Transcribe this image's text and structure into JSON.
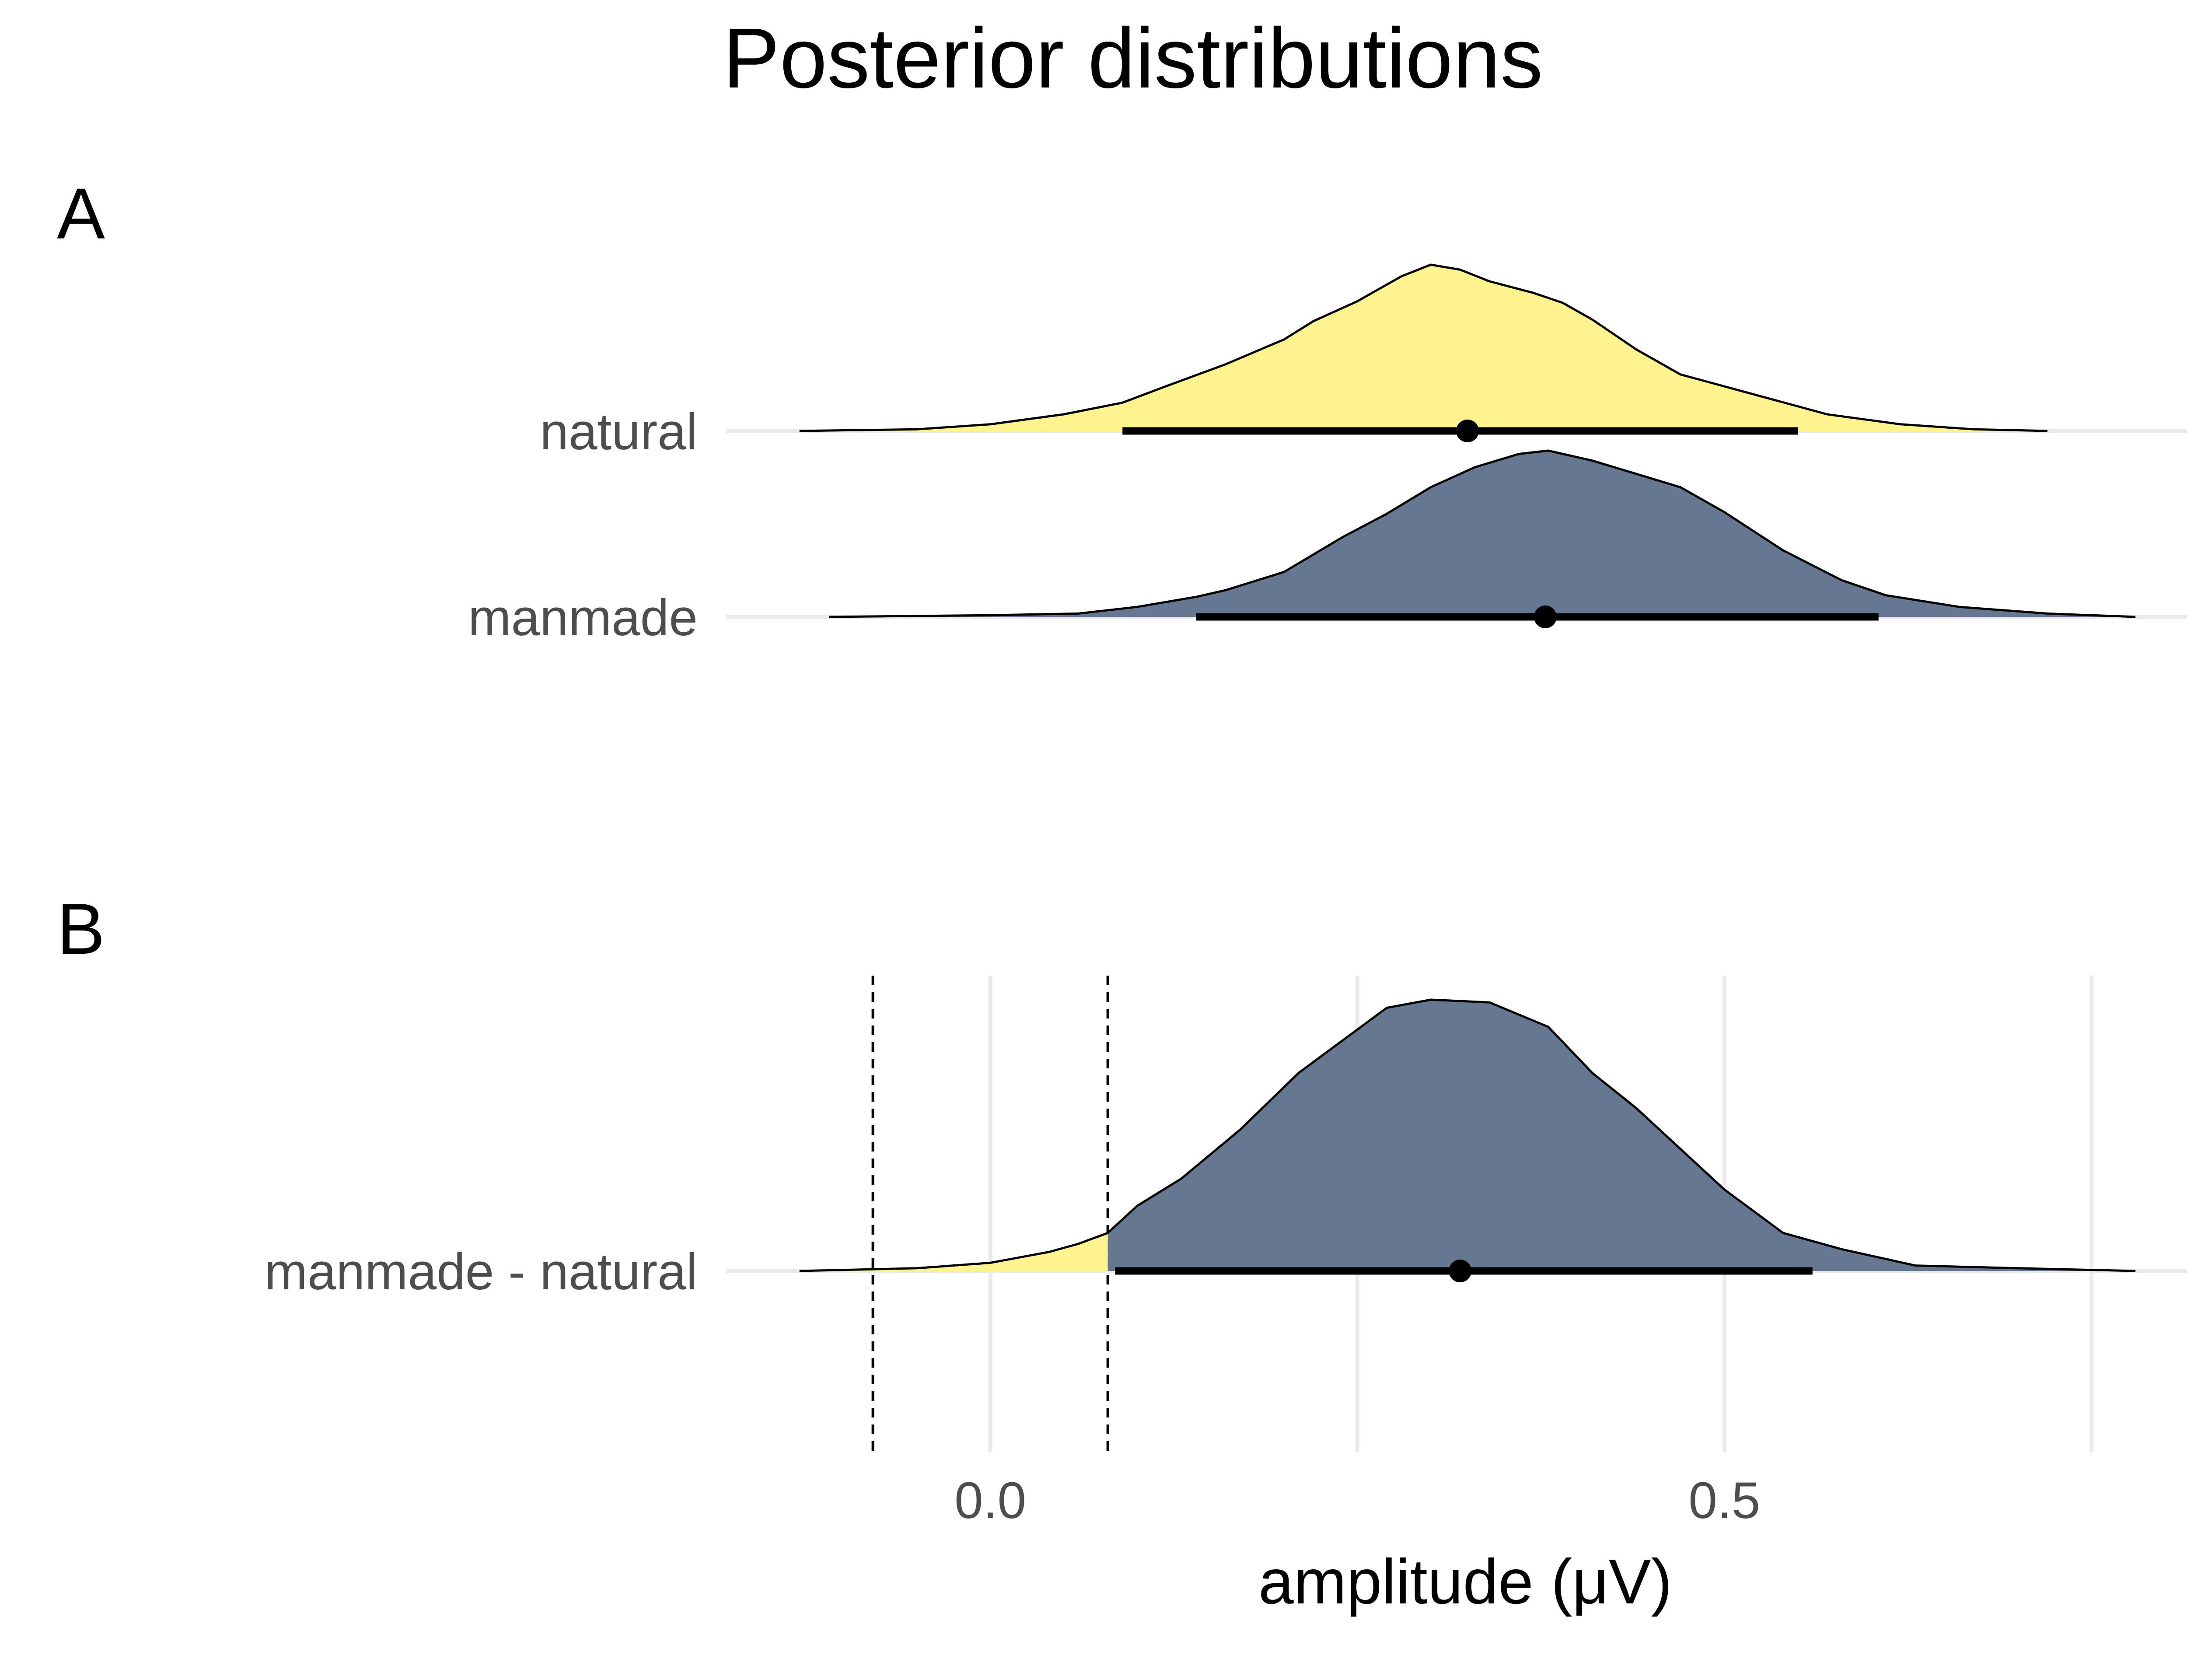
{
  "chart_data": {
    "type": "area",
    "title": "Posterior distributions",
    "xlabel": "amplitude (μV)",
    "xlim": [
      -0.18,
      0.83
    ],
    "x_ticks": [
      {
        "value": 0.0,
        "label": "0.0"
      },
      {
        "value": 0.5,
        "label": "0.5"
      }
    ],
    "x_minor_gridlines": [
      -0.25,
      0.25,
      0.75
    ],
    "colors": {
      "yellow": "#fff38f",
      "slate": "#667891",
      "grid": "#ebebeb"
    },
    "panels": [
      {
        "panel_label": "A",
        "show_vertical_grid": false,
        "reference_lines": [],
        "rows": [
          {
            "name": "natural",
            "density": {
              "x": [
                -0.13,
                -0.05,
                0.0,
                0.05,
                0.09,
                0.12,
                0.16,
                0.2,
                0.22,
                0.25,
                0.28,
                0.3,
                0.32,
                0.34,
                0.37,
                0.39,
                0.41,
                0.44,
                0.47,
                0.52,
                0.57,
                0.62,
                0.67,
                0.72
              ],
              "y": [
                0.0,
                0.01,
                0.04,
                0.1,
                0.17,
                0.27,
                0.4,
                0.55,
                0.66,
                0.78,
                0.93,
                1.0,
                0.97,
                0.9,
                0.83,
                0.77,
                0.67,
                0.49,
                0.34,
                0.22,
                0.1,
                0.04,
                0.01,
                0.0
              ]
            },
            "fill_split_x": 0.09,
            "left_tail_color": "#fff38f",
            "central_color": "#fff38f",
            "right_tail_color": "#fff38f",
            "point_estimate": 0.325,
            "interval": [
              0.09,
              0.55
            ]
          },
          {
            "name": "manmade",
            "density": {
              "x": [
                -0.11,
                0.0,
                0.06,
                0.1,
                0.14,
                0.16,
                0.2,
                0.24,
                0.27,
                0.3,
                0.33,
                0.36,
                0.38,
                0.41,
                0.44,
                0.47,
                0.5,
                0.54,
                0.58,
                0.61,
                0.66,
                0.72,
                0.78
              ],
              "y": [
                0.0,
                0.01,
                0.02,
                0.06,
                0.12,
                0.16,
                0.27,
                0.48,
                0.62,
                0.78,
                0.9,
                0.98,
                1.0,
                0.94,
                0.86,
                0.78,
                0.63,
                0.4,
                0.22,
                0.13,
                0.06,
                0.02,
                0.0
              ]
            },
            "fill_split_x": null,
            "left_tail_color": "#667891",
            "central_color": "#667891",
            "right_tail_color": "#667891",
            "point_estimate": 0.378,
            "interval": [
              0.14,
              0.605
            ]
          }
        ]
      },
      {
        "panel_label": "B",
        "show_vertical_grid": true,
        "reference_lines": [
          -0.08,
          0.08
        ],
        "rows": [
          {
            "name": "manmade - natural",
            "density": {
              "x": [
                -0.13,
                -0.05,
                0.0,
                0.04,
                0.06,
                0.08,
                0.1,
                0.13,
                0.17,
                0.21,
                0.25,
                0.27,
                0.3,
                0.34,
                0.38,
                0.41,
                0.44,
                0.47,
                0.5,
                0.54,
                0.58,
                0.63,
                0.7,
                0.78
              ],
              "y": [
                0.0,
                0.01,
                0.03,
                0.07,
                0.1,
                0.14,
                0.24,
                0.34,
                0.52,
                0.73,
                0.89,
                0.97,
                1.0,
                0.99,
                0.9,
                0.73,
                0.6,
                0.45,
                0.3,
                0.14,
                0.08,
                0.02,
                0.01,
                0.0
              ]
            },
            "fill_split_x": 0.08,
            "left_tail_color": "#fff38f",
            "central_color": "#667891",
            "right_tail_color": "#667891",
            "point_estimate": 0.32,
            "interval": [
              0.085,
              0.56
            ]
          }
        ]
      }
    ]
  }
}
